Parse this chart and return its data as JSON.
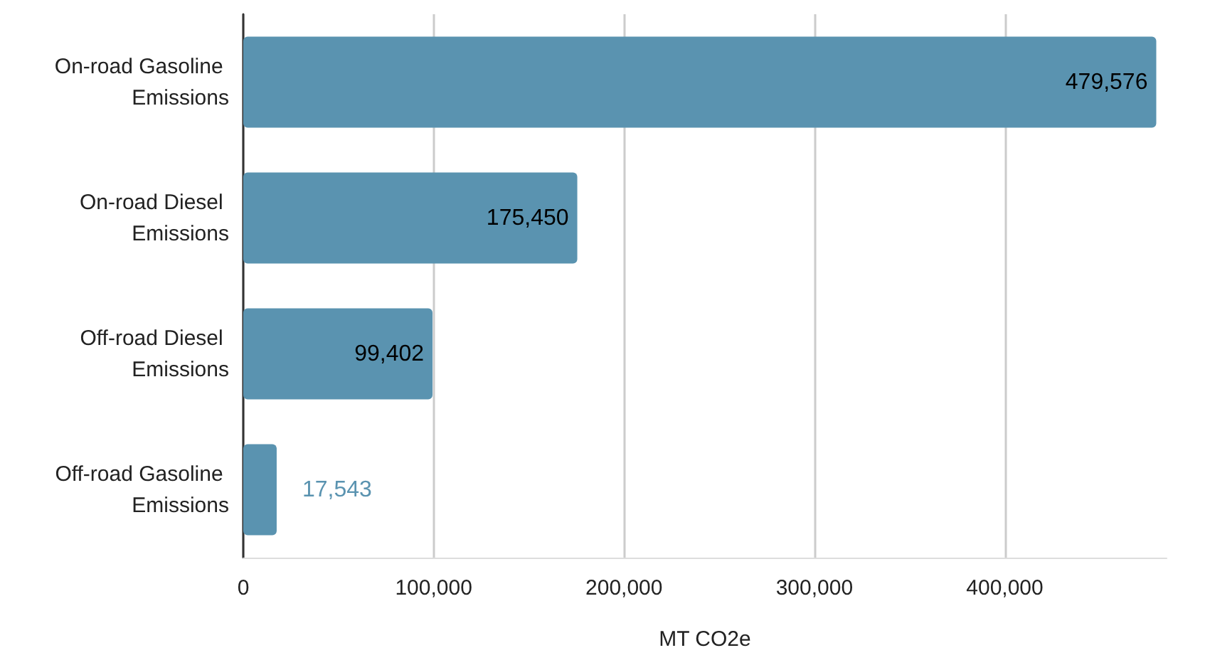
{
  "chart_data": {
    "type": "bar",
    "orientation": "horizontal",
    "categories": [
      "On-road Gasoline Emissions",
      "On-road Diesel Emissions",
      "Off-road Diesel Emissions",
      "Off-road Gasoline Emissions"
    ],
    "values": [
      479576,
      175450,
      99402,
      17543
    ],
    "value_labels": [
      "479,576",
      "175,450",
      "99,402",
      "17,543"
    ],
    "color": "#5a93b0",
    "xlabel": "MT CO2e",
    "xlim": [
      0,
      485000
    ],
    "xticks": [
      {
        "value": 0,
        "label": "0"
      },
      {
        "value": 100000,
        "label": "100,000"
      },
      {
        "value": 200000,
        "label": "200,000"
      },
      {
        "value": 300000,
        "label": "300,000"
      },
      {
        "value": 400000,
        "label": "400,000"
      }
    ],
    "grid": "x"
  }
}
